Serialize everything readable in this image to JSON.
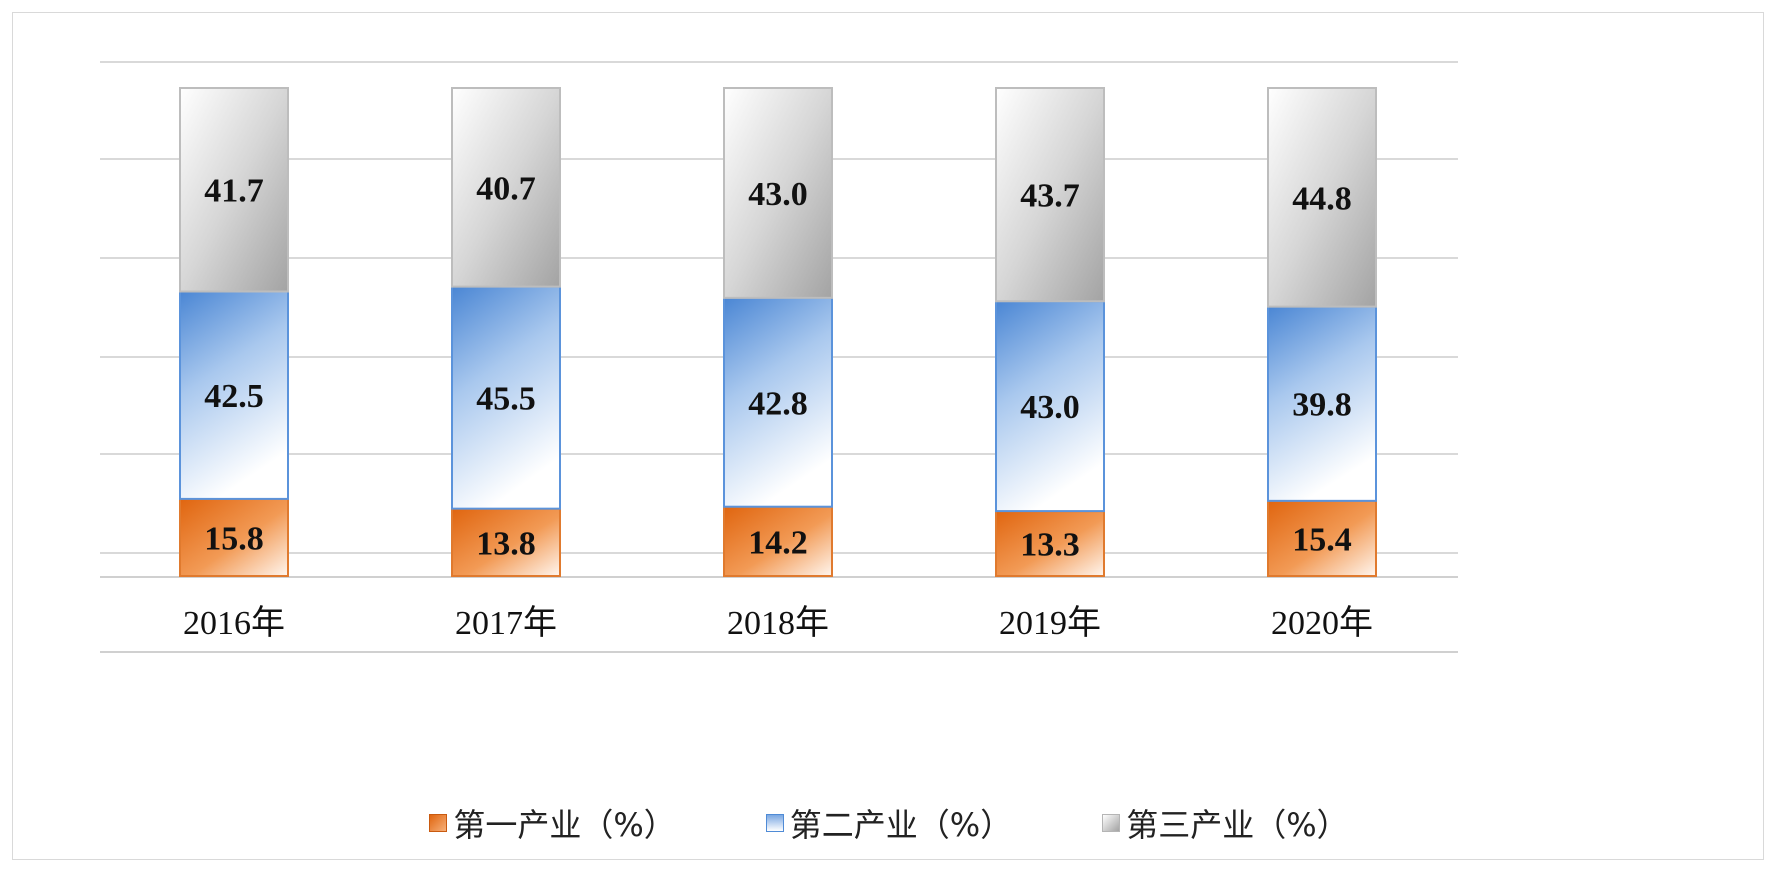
{
  "chart_data": {
    "type": "bar",
    "stacked": true,
    "categories": [
      "2016年",
      "2017年",
      "2018年",
      "2019年",
      "2020年"
    ],
    "series": [
      {
        "name": "第一产业（%）",
        "values": [
          15.8,
          13.8,
          14.2,
          13.3,
          15.4
        ],
        "color": "#e8741c"
      },
      {
        "name": "第二产业（%）",
        "values": [
          42.5,
          45.5,
          42.8,
          43.0,
          39.8
        ],
        "color": "#4f8bd6"
      },
      {
        "name": "第三产业（%）",
        "values": [
          41.7,
          40.7,
          43.0,
          43.7,
          44.8
        ],
        "color": "#a8a8a8"
      }
    ],
    "value_labels": {
      "s0": [
        "15.8",
        "13.8",
        "14.2",
        "13.3",
        "15.4"
      ],
      "s1": [
        "42.5",
        "45.5",
        "42.8",
        "43.0",
        "39.8"
      ],
      "s2": [
        "41.7",
        "40.7",
        "43.0",
        "43.7",
        "44.8"
      ]
    },
    "ylim": [
      0,
      100
    ],
    "grid": true,
    "legend_position": "bottom"
  }
}
